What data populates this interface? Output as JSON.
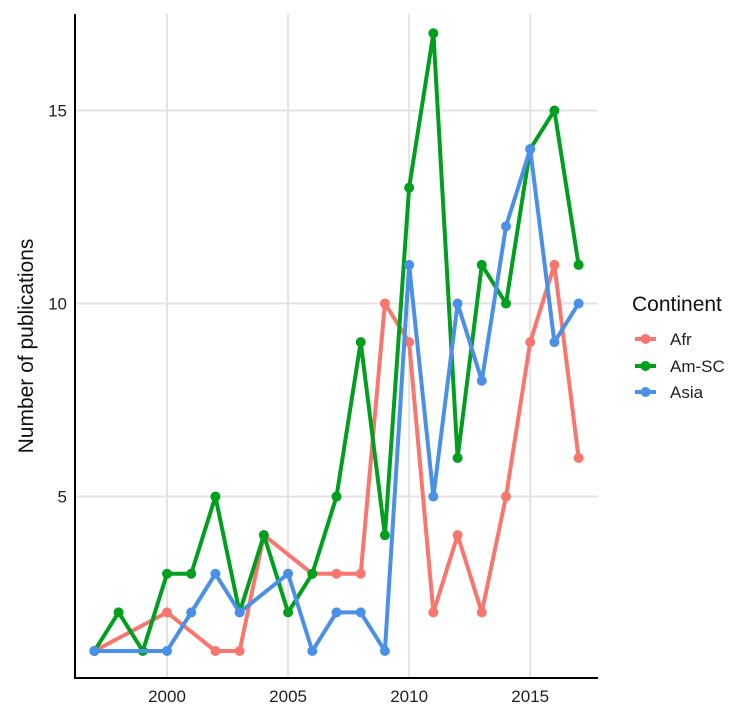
{
  "chart_data": {
    "type": "line",
    "xlabel": "",
    "ylabel": "Number of publications",
    "xlim": [
      1996.2,
      2017.8
    ],
    "ylim": [
      0.3,
      17.5
    ],
    "x_ticks": [
      2000,
      2005,
      2010,
      2015
    ],
    "y_ticks": [
      5,
      10,
      15
    ],
    "grid": true,
    "legend": {
      "title": "Continent",
      "placement": "right"
    },
    "series": [
      {
        "name": "Afr",
        "color": "#F8766D",
        "x": [
          1997,
          2000,
          2002,
          2003,
          2004,
          2006,
          2007,
          2008,
          2009,
          2010,
          2011,
          2012,
          2013,
          2014,
          2015,
          2016,
          2017
        ],
        "y": [
          1,
          2,
          1,
          1,
          4,
          3,
          3,
          3,
          10,
          9,
          2,
          4,
          2,
          5,
          9,
          11,
          6
        ]
      },
      {
        "name": "Am-SC",
        "color": "#00A01E",
        "x": [
          1997,
          1998,
          1999,
          2000,
          2001,
          2002,
          2003,
          2004,
          2005,
          2006,
          2007,
          2008,
          2009,
          2010,
          2011,
          2012,
          2013,
          2014,
          2015,
          2016,
          2017
        ],
        "y": [
          1,
          2,
          1,
          3,
          3,
          5,
          2,
          4,
          2,
          3,
          5,
          9,
          4,
          13,
          17,
          6,
          11,
          10,
          14,
          15,
          11
        ]
      },
      {
        "name": "Asia",
        "color": "#4A8FE8",
        "x": [
          1997,
          2000,
          2001,
          2002,
          2003,
          2005,
          2006,
          2007,
          2008,
          2009,
          2010,
          2011,
          2012,
          2013,
          2014,
          2015,
          2016,
          2017
        ],
        "y": [
          1,
          1,
          2,
          3,
          2,
          3,
          1,
          2,
          2,
          1,
          11,
          5,
          10,
          8,
          12,
          14,
          9,
          10
        ]
      }
    ]
  }
}
